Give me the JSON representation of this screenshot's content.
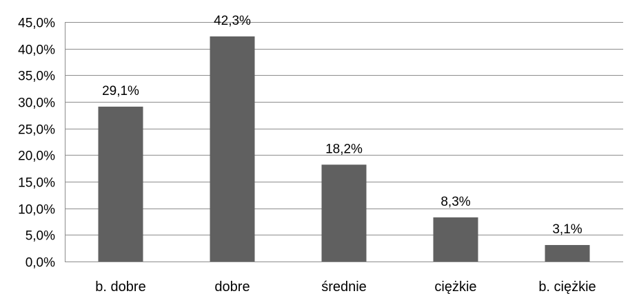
{
  "chart_data": {
    "type": "bar",
    "categories": [
      "b. dobre",
      "dobre",
      "średnie",
      "ciężkie",
      "b. ciężkie"
    ],
    "values": [
      29.1,
      42.3,
      18.2,
      8.3,
      3.1
    ],
    "data_labels": [
      "29,1%",
      "42,3%",
      "18,2%",
      "8,3%",
      "3,1%"
    ],
    "y_ticks": [
      0,
      5,
      10,
      15,
      20,
      25,
      30,
      35,
      40,
      45
    ],
    "y_tick_labels": [
      "0,0%",
      "5,0%",
      "10,0%",
      "15,0%",
      "20,0%",
      "25,0%",
      "30,0%",
      "35,0%",
      "40,0%",
      "45,0%"
    ],
    "ylim": [
      0,
      45
    ],
    "title": "",
    "xlabel": "",
    "ylabel": "",
    "grid": true,
    "legend": "none",
    "bar_color": "#606060",
    "grid_color": "#8c8c8c"
  }
}
